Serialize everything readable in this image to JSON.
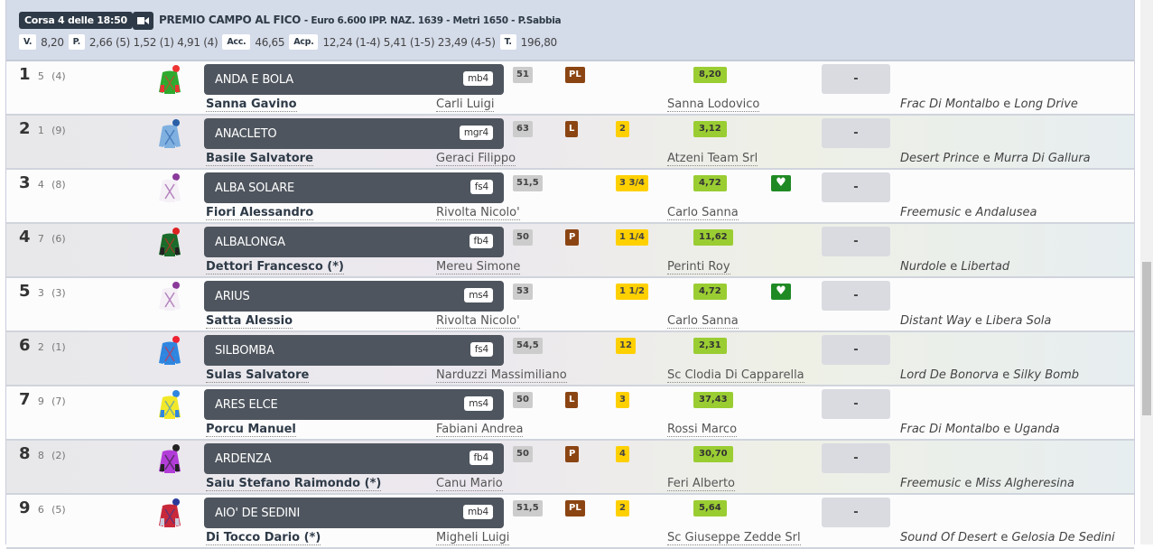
{
  "race": {
    "corsa": "Corsa 4 delle 18:50",
    "camera_icon": "video-camera-icon",
    "name": "PREMIO CAMPO AL FICO",
    "details": "- Euro 6.600 IPP. NAZ. 1639 - Metri 1650 - P.Sabbia"
  },
  "quotes": {
    "v_label": "V.",
    "v": "8,20",
    "p_label": "P.",
    "p": "2,66 (5) 1,52 (1) 4,91 (4)",
    "acc_label": "Acc.",
    "acc": "46,65",
    "acp_label": "Acp.",
    "acp": "12,24 (1-4) 5,41 (1-5) 23,49 (4-5)",
    "t_label": "T.",
    "t": "196,80"
  },
  "colors": {
    "weight": "#cccccc",
    "equipment": "#8b4513",
    "distance": "#ffd000",
    "odds": "#9acd32",
    "heart": "#1f8a24"
  },
  "rows": [
    {
      "place": "1",
      "num": "5",
      "draw": "(4)",
      "horse": "ANDA E BOLA",
      "tag": "mb4",
      "jockey": "Sanna Gavino",
      "trainer": "Carli Luigi",
      "weight": "51",
      "equip": "PL",
      "dist": "",
      "odds": "8,20",
      "heart": false,
      "dash": "-",
      "owner": "Sanna Lodovico",
      "sire": "Frac Di Montalbo",
      "e": "e",
      "dam": "Long Drive",
      "jersey": [
        "#2eaa2e",
        "#e33",
        "#e33"
      ]
    },
    {
      "place": "2",
      "num": "1",
      "draw": "(9)",
      "horse": "ANACLETO",
      "tag": "mgr4",
      "jockey": "Basile Salvatore",
      "trainer": "Geraci Filippo",
      "weight": "63",
      "equip": "L",
      "dist": "2",
      "odds": "3,12",
      "heart": false,
      "dash": "-",
      "owner": "Atzeni Team Srl",
      "sire": "Desert Prince",
      "e": "e",
      "dam": "Murra Di Gallura",
      "jersey": [
        "#7fb0e0",
        "#2a5fa8",
        "#7fb0e0"
      ]
    },
    {
      "place": "3",
      "num": "4",
      "draw": "(8)",
      "horse": "ALBA SOLARE",
      "tag": "fs4",
      "jockey": "Fiori Alessandro",
      "trainer": "Rivolta Nicolo'",
      "weight": "51,5",
      "equip": "",
      "dist": "3 3/4",
      "odds": "4,72",
      "heart": true,
      "dash": "-",
      "owner": "Carlo Sanna",
      "sire": "Freemusic",
      "e": "e",
      "dam": "Andalusea",
      "jersey": [
        "#f4f0f6",
        "#8a3a9a",
        "#f4f0f6"
      ]
    },
    {
      "place": "4",
      "num": "7",
      "draw": "(6)",
      "horse": "ALBALONGA",
      "tag": "fb4",
      "jockey": "Dettori Francesco (*)",
      "trainer": "Mereu Simone",
      "weight": "50",
      "equip": "P",
      "dist": "1 1/4",
      "odds": "11,62",
      "heart": false,
      "dash": "-",
      "owner": "Perinti Roy",
      "sire": "Nurdole",
      "e": "e",
      "dam": "Libertad",
      "jersey": [
        "#1b6b2a",
        "#d22",
        "#222"
      ]
    },
    {
      "place": "5",
      "num": "3",
      "draw": "(3)",
      "horse": "ARIUS",
      "tag": "ms4",
      "jockey": "Satta Alessio",
      "trainer": "Rivolta Nicolo'",
      "weight": "53",
      "equip": "",
      "dist": "1 1/2",
      "odds": "4,72",
      "heart": true,
      "dash": "-",
      "owner": "Carlo Sanna",
      "sire": "Distant Way",
      "e": "e",
      "dam": "Libera Sola",
      "jersey": [
        "#f4f0f6",
        "#8a3a9a",
        "#f4f0f6"
      ]
    },
    {
      "place": "6",
      "num": "2",
      "draw": "(1)",
      "horse": "SILBOMBA",
      "tag": "fs4",
      "jockey": "Sulas Salvatore",
      "trainer": "Narduzzi Massimiliano",
      "weight": "54,5",
      "equip": "",
      "dist": "12",
      "odds": "2,31",
      "heart": false,
      "dash": "-",
      "owner": "Sc Clodia Di Capparella",
      "sire": "Lord De Bonorva",
      "e": "e",
      "dam": "Silky Bomb",
      "jersey": [
        "#2f86e0",
        "#e23",
        "#2f86e0"
      ]
    },
    {
      "place": "7",
      "num": "9",
      "draw": "(7)",
      "horse": "ARES ELCE",
      "tag": "ms4",
      "jockey": "Porcu Manuel",
      "trainer": "Fabiani Andrea",
      "weight": "50",
      "equip": "L",
      "dist": "3",
      "odds": "37,43",
      "heart": false,
      "dash": "-",
      "owner": "Rossi Marco",
      "sire": "Frac Di Montalbo",
      "e": "e",
      "dam": "Uganda",
      "jersey": [
        "#f2e82a",
        "#2f86e0",
        "#2f86e0"
      ]
    },
    {
      "place": "8",
      "num": "8",
      "draw": "(2)",
      "horse": "ARDENZA",
      "tag": "fb4",
      "jockey": "Saiu Stefano Raimondo (*)",
      "trainer": "Canu Mario",
      "weight": "50",
      "equip": "P",
      "dist": "4",
      "odds": "30,70",
      "heart": false,
      "dash": "-",
      "owner": "Feri Alberto",
      "sire": "Freemusic",
      "e": "e",
      "dam": "Miss Algheresina",
      "jersey": [
        "#b23cd8",
        "#222",
        "#222"
      ]
    },
    {
      "place": "9",
      "num": "6",
      "draw": "(5)",
      "horse": "AIO' DE SEDINI",
      "tag": "mb4",
      "jockey": "Di Tocco Dario (*)",
      "trainer": "Migheli Luigi",
      "weight": "51,5",
      "equip": "PL",
      "dist": "2",
      "odds": "5,64",
      "heart": false,
      "dash": "-",
      "owner": "Sc Giuseppe Zedde Srl",
      "sire": "Sound Of Desert",
      "e": "e",
      "dam": "Gelosia De Sedini",
      "jersey": [
        "#c8283a",
        "#2a3a9a",
        "#ccd"
      ]
    }
  ]
}
